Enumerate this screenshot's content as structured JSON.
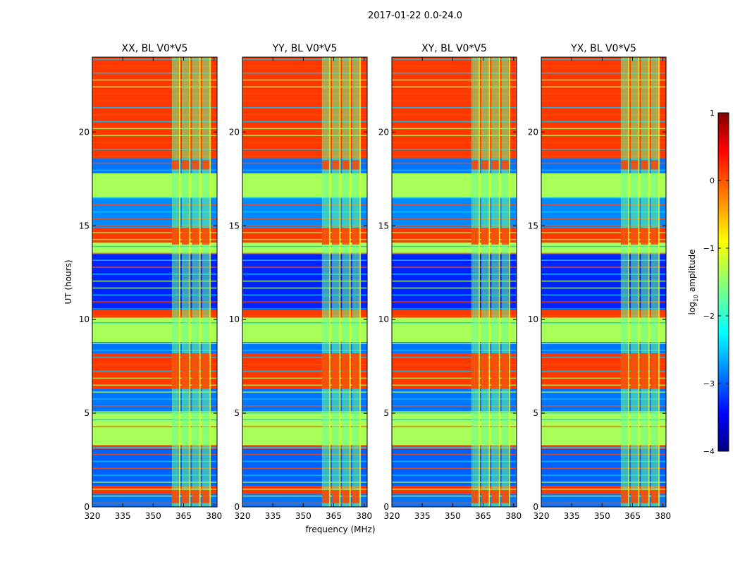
{
  "chart_data": {
    "type": "heatmap",
    "suptitle": "2017-01-22 0.0-24.0",
    "xlabel": "frequency (MHz)",
    "ylabel": "UT (hours)",
    "xlim": [
      320,
      381.5
    ],
    "ylim": [
      0,
      24
    ],
    "xticks": [
      320,
      335,
      350,
      365,
      380
    ],
    "yticks": [
      0,
      5,
      10,
      15,
      20
    ],
    "band_edges_mhz": [
      358.5,
      363.4,
      368.4,
      373.4,
      378.4
    ],
    "panels": [
      {
        "title": "XX, BL V0*V5"
      },
      {
        "title": "YY, BL V0*V5"
      },
      {
        "title": "XY, BL V0*V5"
      },
      {
        "title": "YX, BL V0*V5"
      }
    ],
    "colorbar": {
      "label": "log",
      "label_sub": "10",
      "label_rest": " amplitude",
      "range": [
        -4,
        1
      ],
      "ticks": [
        1,
        0,
        -1,
        -2,
        -3,
        -4
      ],
      "colormap": "jet"
    },
    "time_segments_ut": [
      {
        "from": 0.0,
        "to": 0.7,
        "level": -2.8
      },
      {
        "from": 0.7,
        "to": 1.1,
        "level": 0.1
      },
      {
        "from": 1.1,
        "to": 3.1,
        "level": -2.9
      },
      {
        "from": 3.1,
        "to": 3.3,
        "level": 0.1
      },
      {
        "from": 3.3,
        "to": 5.1,
        "level": -1.3
      },
      {
        "from": 5.1,
        "to": 6.3,
        "level": -2.8
      },
      {
        "from": 6.3,
        "to": 8.2,
        "level": 0.1
      },
      {
        "from": 8.2,
        "to": 8.8,
        "level": -2.8
      },
      {
        "from": 8.8,
        "to": 9.8,
        "level": -1.3
      },
      {
        "from": 9.8,
        "to": 10.1,
        "level": -1.3
      },
      {
        "from": 10.1,
        "to": 10.5,
        "level": 0.1
      },
      {
        "from": 10.5,
        "to": 13.5,
        "level": -3.2
      },
      {
        "from": 13.5,
        "to": 14.1,
        "level": -1.3
      },
      {
        "from": 14.1,
        "to": 14.9,
        "level": 0.1
      },
      {
        "from": 14.9,
        "to": 16.5,
        "level": -2.7
      },
      {
        "from": 16.5,
        "to": 17.8,
        "level": -1.3
      },
      {
        "from": 17.8,
        "to": 18.6,
        "level": -2.8
      },
      {
        "from": 18.6,
        "to": 24.0,
        "level": 0.1
      }
    ]
  }
}
